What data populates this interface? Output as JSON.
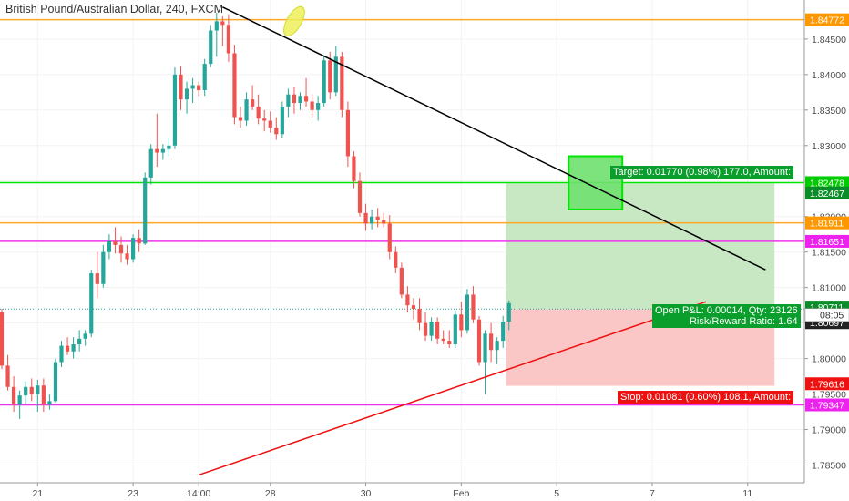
{
  "chart_title": "British Pound/Australian Dollar, 240, FXCM",
  "chart_data": {
    "type": "candlestick",
    "symbol": "British Pound/Australian Dollar",
    "interval": "240",
    "source": "FXCM",
    "ylim": [
      1.7825,
      1.8505
    ],
    "y_ticks": [
      "1.78500",
      "1.79000",
      "1.79500",
      "1.80000",
      "1.80500",
      "1.81000",
      "1.81500",
      "1.82000",
      "1.82500",
      "1.83000",
      "1.83500",
      "1.84000",
      "1.84500"
    ],
    "y_tick_values": [
      1.785,
      1.79,
      1.795,
      1.8,
      1.805,
      1.81,
      1.815,
      1.82,
      1.825,
      1.83,
      1.835,
      1.84,
      1.845
    ],
    "x_ticks": [
      {
        "label": "21",
        "bar": 6
      },
      {
        "label": "23",
        "bar": 22
      },
      {
        "label": "14:00",
        "bar": 33
      },
      {
        "label": "28",
        "bar": 45
      },
      {
        "label": "30",
        "bar": 61
      },
      {
        "label": "Feb",
        "bar": 77
      },
      {
        "label": "5",
        "bar": 93
      },
      {
        "label": "7",
        "bar": 109
      },
      {
        "label": "11",
        "bar": 125
      }
    ],
    "candles": [
      [
        1.8065,
        1.807,
        1.7985,
        1.799
      ],
      [
        1.799,
        1.8005,
        1.7955,
        1.796
      ],
      [
        1.796,
        1.7975,
        1.7925,
        1.7935
      ],
      [
        1.7935,
        1.7955,
        1.7915,
        1.7948
      ],
      [
        1.7948,
        1.7968,
        1.7935,
        1.796
      ],
      [
        1.796,
        1.7972,
        1.794,
        1.795
      ],
      [
        1.795,
        1.797,
        1.7925,
        1.7962
      ],
      [
        1.7962,
        1.7972,
        1.7925,
        1.7935
      ],
      [
        1.7935,
        1.795,
        1.7928,
        1.794
      ],
      [
        1.794,
        1.8,
        1.7938,
        1.7995
      ],
      [
        1.7995,
        1.8025,
        1.7988,
        1.8018
      ],
      [
        1.8018,
        1.803,
        1.8005,
        1.801
      ],
      [
        1.801,
        1.803,
        1.8,
        1.802
      ],
      [
        1.802,
        1.804,
        1.801,
        1.8028
      ],
      [
        1.8028,
        1.804,
        1.8018,
        1.8035
      ],
      [
        1.8035,
        1.8125,
        1.803,
        1.812
      ],
      [
        1.812,
        1.815,
        1.8085,
        1.8105
      ],
      [
        1.8105,
        1.816,
        1.81,
        1.815
      ],
      [
        1.815,
        1.8175,
        1.814,
        1.8165
      ],
      [
        1.8165,
        1.8185,
        1.8148,
        1.816
      ],
      [
        1.816,
        1.8172,
        1.8135,
        1.8148
      ],
      [
        1.8148,
        1.816,
        1.8132,
        1.814
      ],
      [
        1.814,
        1.8175,
        1.8135,
        1.817
      ],
      [
        1.817,
        1.8182,
        1.815,
        1.8162
      ],
      [
        1.8162,
        1.8262,
        1.816,
        1.8255
      ],
      [
        1.8255,
        1.8302,
        1.8245,
        1.8295
      ],
      [
        1.8295,
        1.8345,
        1.827,
        1.829
      ],
      [
        1.829,
        1.8302,
        1.828,
        1.8295
      ],
      [
        1.8295,
        1.831,
        1.8285,
        1.83
      ],
      [
        1.83,
        1.841,
        1.8295,
        1.84
      ],
      [
        1.84,
        1.8412,
        1.835,
        1.8365
      ],
      [
        1.8365,
        1.839,
        1.8345,
        1.838
      ],
      [
        1.838,
        1.8395,
        1.836,
        1.8385
      ],
      [
        1.8385,
        1.839,
        1.837,
        1.8378
      ],
      [
        1.8378,
        1.8422,
        1.837,
        1.8415
      ],
      [
        1.8415,
        1.847,
        1.841,
        1.8462
      ],
      [
        1.8462,
        1.8487,
        1.8425,
        1.8475
      ],
      [
        1.8475,
        1.8482,
        1.844,
        1.847
      ],
      [
        1.847,
        1.8485,
        1.8418,
        1.843
      ],
      [
        1.843,
        1.8442,
        1.833,
        1.834
      ],
      [
        1.834,
        1.8355,
        1.8325,
        1.8335
      ],
      [
        1.8335,
        1.8375,
        1.8328,
        1.8365
      ],
      [
        1.8365,
        1.8385,
        1.835,
        1.8355
      ],
      [
        1.8355,
        1.8372,
        1.833,
        1.8338
      ],
      [
        1.8338,
        1.835,
        1.832,
        1.8335
      ],
      [
        1.8335,
        1.8348,
        1.8318,
        1.8325
      ],
      [
        1.8325,
        1.834,
        1.8308,
        1.8316
      ],
      [
        1.8316,
        1.8362,
        1.831,
        1.8355
      ],
      [
        1.8355,
        1.838,
        1.834,
        1.8372
      ],
      [
        1.8372,
        1.8382,
        1.8345,
        1.836
      ],
      [
        1.836,
        1.8375,
        1.835,
        1.837
      ],
      [
        1.837,
        1.8395,
        1.8355,
        1.8362
      ],
      [
        1.8362,
        1.8372,
        1.834,
        1.835
      ],
      [
        1.835,
        1.837,
        1.8335,
        1.836
      ],
      [
        1.836,
        1.8425,
        1.8355,
        1.842
      ],
      [
        1.842,
        1.8432,
        1.8365,
        1.8375
      ],
      [
        1.8375,
        1.844,
        1.837,
        1.8425
      ],
      [
        1.8425,
        1.8432,
        1.834,
        1.835
      ],
      [
        1.835,
        1.8362,
        1.827,
        1.8285
      ],
      [
        1.8285,
        1.8292,
        1.824,
        1.825
      ],
      [
        1.825,
        1.8262,
        1.82,
        1.8205
      ],
      [
        1.8205,
        1.8218,
        1.818,
        1.819
      ],
      [
        1.819,
        1.821,
        1.8182,
        1.82
      ],
      [
        1.82,
        1.8212,
        1.8185,
        1.8195
      ],
      [
        1.8195,
        1.8205,
        1.8185,
        1.819
      ],
      [
        1.819,
        1.8202,
        1.814,
        1.815
      ],
      [
        1.815,
        1.8158,
        1.812,
        1.8128
      ],
      [
        1.8128,
        1.8135,
        1.8085,
        1.809
      ],
      [
        1.809,
        1.8102,
        1.8065,
        1.8075
      ],
      [
        1.8075,
        1.8085,
        1.8055,
        1.807
      ],
      [
        1.807,
        1.8085,
        1.804,
        1.805
      ],
      [
        1.805,
        1.8065,
        1.8025,
        1.8032
      ],
      [
        1.8032,
        1.8058,
        1.8025,
        1.8052
      ],
      [
        1.8052,
        1.8058,
        1.802,
        1.8028
      ],
      [
        1.8028,
        1.804,
        1.802,
        1.8025
      ],
      [
        1.8025,
        1.804,
        1.8015,
        1.802
      ],
      [
        1.802,
        1.8068,
        1.8015,
        1.8062
      ],
      [
        1.8062,
        1.808,
        1.803,
        1.804
      ],
      [
        1.804,
        1.8098,
        1.8035,
        1.809
      ],
      [
        1.809,
        1.8102,
        1.805,
        1.8055
      ],
      [
        1.8055,
        1.806,
        1.799,
        1.7995
      ],
      [
        1.7995,
        1.804,
        1.795,
        1.8035
      ],
      [
        1.8035,
        1.805,
        1.7995,
        1.8012
      ],
      [
        1.8012,
        1.803,
        1.7992,
        1.8025
      ],
      [
        1.8025,
        1.806,
        1.8015,
        1.8052
      ],
      [
        1.8052,
        1.8082,
        1.804,
        1.8078
      ]
    ],
    "horizontal_lines": [
      {
        "price": 1.84772,
        "color": "#ffa726"
      },
      {
        "price": 1.82478,
        "color": "#00e600"
      },
      {
        "price": 1.81911,
        "color": "#ffa726"
      },
      {
        "price": 1.81651,
        "color": "#ee33ee"
      },
      {
        "price": 1.79347,
        "color": "#ee33ee"
      }
    ],
    "trend_lines": [
      {
        "color": "#000000",
        "from": {
          "bar": 37,
          "price": 1.8495
        },
        "to": {
          "bar": 128,
          "price": 1.8125
        }
      },
      {
        "color": "#ee1111",
        "from": {
          "bar": 33,
          "price": 1.7836
        },
        "to": {
          "bar": 118,
          "price": 1.808
        }
      }
    ],
    "position": {
      "type": "long",
      "entry": 1.80697,
      "target": 1.82467,
      "stop": 1.79616,
      "from_bar": 84.5,
      "to_bar": 129.5
    },
    "highlight_box": {
      "from_bar": 95,
      "to_bar": 104,
      "price_top": 1.8285,
      "price_bottom": 1.821,
      "color": "#00e600"
    },
    "ellipse_marker": {
      "bar": 49,
      "price": 1.8475,
      "color": "#e8f03a"
    },
    "price_labels": [
      {
        "text": "1.84772",
        "price": 1.84772,
        "bg": "#ff9800",
        "fg": "#ffffff"
      },
      {
        "text": "1.82478",
        "price": 1.82478,
        "bg": "#00cc00",
        "fg": "#ffffff"
      },
      {
        "text": "1.82467",
        "price": 1.82332,
        "bg": "#0a8c28",
        "fg": "#ffffff"
      },
      {
        "text": "1.81911",
        "price": 1.81911,
        "bg": "#ff9800",
        "fg": "#ffffff"
      },
      {
        "text": "1.81651",
        "price": 1.81651,
        "bg": "#ee22ee",
        "fg": "#ffffff"
      },
      {
        "text": "1.80711",
        "price": 1.80725,
        "bg": "#0a8c28",
        "fg": "#ffffff"
      },
      {
        "text": "1.80697",
        "price": 1.80505,
        "bg": "#222222",
        "fg": "#ffffff"
      },
      {
        "text": "1.79616",
        "price": 1.79645,
        "bg": "#ee1111",
        "fg": "#ffffff"
      },
      {
        "text": "1.79347",
        "price": 1.79347,
        "bg": "#ee22ee",
        "fg": "#ffffff"
      }
    ],
    "countdown_label": {
      "text": "08:05",
      "price": 1.80615
    },
    "target_label": "Target: 0.01770 (0.98%) 177.0, Amount:",
    "stop_label": "Stop: 0.01081 (0.60%) 108.1, Amount:",
    "pnl_label": "Open P&L: 0.00014, Qty: 23126",
    "rr_label": "Risk/Reward Ratio: 1.64",
    "colors": {
      "up": "#26a69a",
      "down": "#ef5350",
      "axis_text": "#4a4a4a",
      "grid": "#f3f3f3"
    }
  }
}
